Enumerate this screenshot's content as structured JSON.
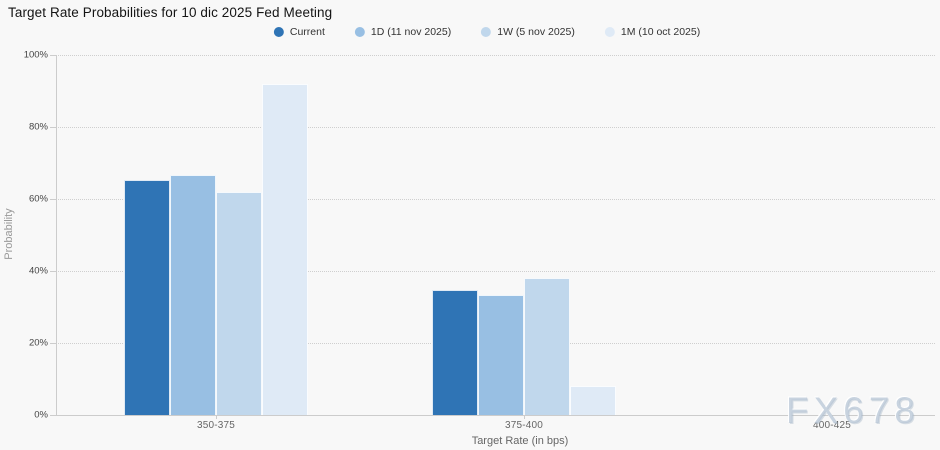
{
  "watermark": "FX678",
  "chart_data": {
    "type": "bar",
    "title": "Target Rate Probabilities for 10 dic 2025 Fed Meeting",
    "xlabel": "Target Rate (in bps)",
    "ylabel": "Probability",
    "ylim": [
      0,
      100
    ],
    "ytick_labels": [
      "0%",
      "20%",
      "40%",
      "60%",
      "80%",
      "100%"
    ],
    "grid": "horizontal dotted",
    "legend_position": "top center",
    "categories": [
      "350-375",
      "375-400",
      "400-425"
    ],
    "series": [
      {
        "name": "Current",
        "color": "#2f74b5",
        "values": [
          65.3,
          34.7,
          0
        ]
      },
      {
        "name": "1D (11 nov 2025)",
        "color": "#98bfe3",
        "values": [
          66.8,
          33.2,
          0
        ]
      },
      {
        "name": "1W (5 nov 2025)",
        "color": "#c0d7ec",
        "values": [
          62.0,
          38.0,
          0
        ]
      },
      {
        "name": "1M (10 oct 2025)",
        "color": "#dfeaf6",
        "values": [
          92.0,
          8.0,
          0
        ]
      }
    ]
  }
}
